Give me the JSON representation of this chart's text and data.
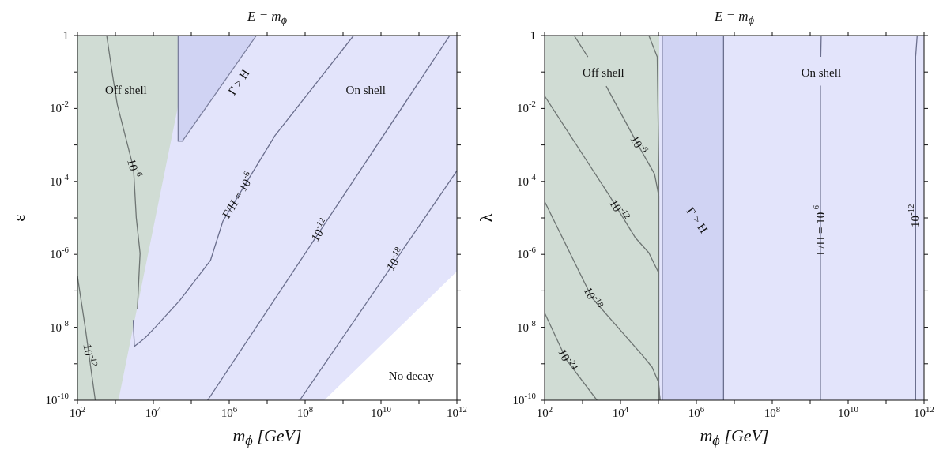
{
  "chart_data": [
    {
      "type": "line",
      "title": "E = m$_{ϕ}$",
      "xlabel": "m$_{ϕ}$  [GeV]",
      "ylabel": "ε",
      "log": "xy",
      "xlim": [
        100,
        1000000000000.0
      ],
      "ylim": [
        1e-10,
        1
      ],
      "xticks": [
        {
          "value": 100,
          "label": "10$^{2}$"
        },
        {
          "value": 1000,
          "label": null
        },
        {
          "value": 10000.0,
          "label": "10$^{4}$"
        },
        {
          "value": 100000.0,
          "label": null
        },
        {
          "value": 1000000.0,
          "label": "10$^{6}$"
        },
        {
          "value": 10000000.0,
          "label": null
        },
        {
          "value": 100000000.0,
          "label": "10$^{8}$"
        },
        {
          "value": 1000000000.0,
          "label": null
        },
        {
          "value": 10000000000.0,
          "label": "10$^{10}$"
        },
        {
          "value": 100000000000.0,
          "label": null
        },
        {
          "value": 1000000000000.0,
          "label": "10$^{12}$"
        }
      ],
      "yticks": [
        {
          "value": 1e-10,
          "label": "10$^{-10}$"
        },
        {
          "value": 1e-09,
          "label": null
        },
        {
          "value": 1e-08,
          "label": "10$^{-8}$"
        },
        {
          "value": 1e-07,
          "label": null
        },
        {
          "value": 1e-06,
          "label": "10$^{-6}$"
        },
        {
          "value": 1e-05,
          "label": null
        },
        {
          "value": 0.0001,
          "label": "10$^{-4}$"
        },
        {
          "value": 0.001,
          "label": null
        },
        {
          "value": 0.01,
          "label": "10$^{-2}$"
        },
        {
          "value": 0.1,
          "label": null
        },
        1
      ],
      "series": [
        {
          "type": "area",
          "color": "#d0dcd4",
          "x": [
            100,
            45000.0
          ],
          "values": [
            1,
            1
          ]
        },
        {
          "type": "area",
          "color": "#d0d3f3",
          "x": [
            45000.0,
            5200000.0
          ],
          "values": [
            1,
            1
          ]
        },
        {
          "type": "area",
          "color": "#e3e4fb",
          "x": [
            1200,
            45000.0,
            45000.0,
            58000.0,
            5200000.0,
            1000000000000.0
          ],
          "values": [
            1e-10,
            0.012,
            0.00126,
            0.00126,
            1,
            1
          ]
        },
        {
          "type": "area",
          "color": "#ffffff",
          "x": [
            320000000.0,
            1000000000000.0
          ],
          "values": [
            1e-10,
            3.4e-07
          ]
        },
        {
          "type": "line",
          "color": "#7b7f9e",
          "x": [
            45000.0,
            45000.0,
            58000.0,
            5200000.0
          ],
          "values": [
            1,
            0.00126,
            0.00126,
            1
          ]
        },
        {
          "type": "line",
          "color": "#6e7573",
          "x": [
            590,
            850,
            1120,
            3000,
            3550,
            4470,
            4170,
            3800
          ],
          "values": [
            1,
            0.076,
            0.0129,
            0.00023,
            1e-05,
            1.07e-06,
            2.5e-07,
            3.2e-08
          ]
        },
        {
          "type": "line",
          "color": "#6e7573",
          "x": [
            100,
            160,
            295
          ],
          "values": [
            2.5e-07,
            1e-08,
            1e-10
          ]
        },
        {
          "type": "line",
          "color": "#6b6f8e",
          "x": [
            2950,
            3160,
            5900,
            11200.0,
            50000.0,
            320000.0,
            680000.0,
            16000000.0,
            1900000000.0
          ],
          "values": [
            1.6e-08,
            3e-09,
            5e-09,
            1e-08,
            5.5e-08,
            6.8e-07,
            8.1e-06,
            0.0018,
            1
          ]
        },
        {
          "type": "line",
          "color": "#6b6f8e",
          "x": [
            270000.0,
            650000000000.0
          ],
          "values": [
            1e-10,
            1
          ]
        },
        {
          "type": "line",
          "color": "#6b6f8e",
          "x": [
            72000000.0,
            1000000000000.0
          ],
          "values": [
            1e-10,
            0.000195
          ]
        }
      ],
      "annotations": [
        "Off shell",
        "On shell",
        "No decay",
        "Γ > H",
        {
          "text": "Γ/H = 10$^{-6}$",
          "x": 1740000.0,
          "y": 4.1e-05
        },
        {
          "text": "10$^{-12}$",
          "x": 250000000.0,
          "y": 4.5e-06
        },
        {
          "text": "10$^{-18}$",
          "x": 24500000000.0,
          "y": 7.1e-07
        },
        {
          "text": "10$^{-6}$",
          "x": 3000,
          "y": 0.00023
        },
        {
          "text": "10$^{-12}$",
          "x": 200,
          "y": 1.7e-09
        }
      ]
    },
    {
      "type": "line",
      "title": "E = m$_{ϕ}$",
      "xlabel": "m$_{ϕ}$  [GeV]",
      "ylabel": "λ",
      "log": "xy",
      "xlim": [
        100,
        1000000000000.0
      ],
      "ylim": [
        1e-10,
        1
      ],
      "xticks": [
        {
          "value": 100,
          "label": "10$^{2}$"
        },
        {
          "value": 1000,
          "label": null
        },
        {
          "value": 10000.0,
          "label": "10$^{4}$"
        },
        {
          "value": 100000.0,
          "label": null
        },
        {
          "value": 1000000.0,
          "label": "10$^{6}$"
        },
        {
          "value": 10000000.0,
          "label": null
        },
        {
          "value": 100000000.0,
          "label": "10$^{8}$"
        },
        {
          "value": 1000000000.0,
          "label": null
        },
        {
          "value": 10000000000.0,
          "label": "10$^{10}$"
        },
        {
          "value": 100000000000.0,
          "label": null
        },
        {
          "value": 1000000000000.0,
          "label": "10$^{12}$"
        }
      ],
      "yticks": [
        {
          "value": 1e-10,
          "label": "10$^{-10}$"
        },
        {
          "value": 1e-09,
          "label": null
        },
        {
          "value": 1e-08,
          "label": "10$^{-8}$"
        },
        {
          "value": 1e-07,
          "label": null
        },
        {
          "value": 1e-06,
          "label": "10$^{-6}$"
        },
        {
          "value": 1e-05,
          "label": null
        },
        {
          "value": 0.0001,
          "label": "10$^{-4}$"
        },
        {
          "value": 0.001,
          "label": null
        },
        {
          "value": 0.01,
          "label": "10$^{-2}$"
        },
        {
          "value": 0.1,
          "label": null
        },
        1
      ],
      "series": [
        {
          "type": "area",
          "color": "#e3e4fb",
          "x": [
            105000.0,
            1000000000000.0
          ],
          "values": [
            1,
            1
          ]
        },
        {
          "type": "area",
          "color": "#d0dcd4",
          "x": [
            100,
            105000.0
          ],
          "values": [
            1,
            1
          ]
        },
        {
          "type": "area",
          "color": "#d0d3f3",
          "x": [
            126000.0,
            5200000.0
          ],
          "values": [
            1,
            1
          ]
        },
        {
          "type": "line",
          "color": "#6b6f8e",
          "x": [
            126000.0,
            126000.0
          ],
          "values": [
            1e-10,
            1
          ]
        },
        {
          "type": "line",
          "color": "#6b6f8e",
          "x": [
            5200000.0,
            5200000.0
          ],
          "values": [
            1e-10,
            1
          ]
        },
        {
          "type": "line",
          "color": "#6e7573",
          "x": [
            56000.0,
            93000.0,
            102000.0,
            102000.0
          ],
          "values": [
            1,
            0.26,
            0.00025,
            1e-10
          ]
        },
        {
          "type": "line",
          "color": "#6e7573",
          "x": [
            600,
            1380,
            2000,
            4200,
            29000.0,
            79000.0,
            102000.0,
            102000.0
          ],
          "values": [
            1,
            0.26,
            null,
            0.041,
            0.001,
            0.00016,
            4e-05,
            1e-10
          ]
        },
        {
          "type": "line",
          "color": "#6e7573",
          "x": [
            100,
            5000,
            8900,
            25000.0,
            56000.0,
            100000.0,
            100000.0,
            110000.0
          ],
          "values": [
            0.022,
            4.2e-05,
            1.6e-05,
            2.8e-06,
            1.1e-06,
            3.2e-07,
            3.2e-10,
            1e-10
          ]
        },
        {
          "type": "line",
          "color": "#6e7573",
          "x": [
            100,
            1800,
            38000.0,
            68000.0,
            100000.0,
            110000.0
          ],
          "values": [
            2.8e-05,
            6.3e-08,
            1.7e-09,
            8.1e-10,
            3.2e-10,
            1e-10
          ]
        },
        {
          "type": "line",
          "color": "#6e7573",
          "x": [
            100,
            380,
            2400
          ],
          "values": [
            2.5e-08,
            1.26e-09,
            1e-10
          ]
        },
        {
          "type": "line",
          "color": "#6b6f8e",
          "x": [
            1950000000.0,
            1900000000.0,
            1880000000.0,
            1860000000.0,
            1860000000.0
          ],
          "values": [
            1,
            0.26,
            null,
            0.042,
            1e-10
          ]
        },
        {
          "type": "line",
          "color": "#6b6f8e",
          "x": [
            660000000000.0,
            600000000000.0,
            600000000000.0
          ],
          "values": [
            1,
            0.26,
            1e-10
          ]
        }
      ],
      "annotations": [
        "Off shell",
        "On shell",
        "Γ > H",
        {
          "text": "Γ/H = 10$^{-6}$",
          "x": 1860000000.0,
          "y": 4.6e-06
        },
        {
          "text": "10$^{-12}$",
          "x": 600000000000.0,
          "y": 1.15e-05
        },
        {
          "text": "10$^{-6}$",
          "x": 29000.0,
          "y": 0.001
        },
        {
          "text": "10$^{-12}$",
          "x": 8900,
          "y": 1.6e-05
        },
        {
          "text": "10$^{-18}$",
          "x": 1800,
          "y": 6.3e-08
        },
        {
          "text": "10$^{-24}$",
          "x": 380,
          "y": 1.26e-09
        }
      ]
    }
  ]
}
